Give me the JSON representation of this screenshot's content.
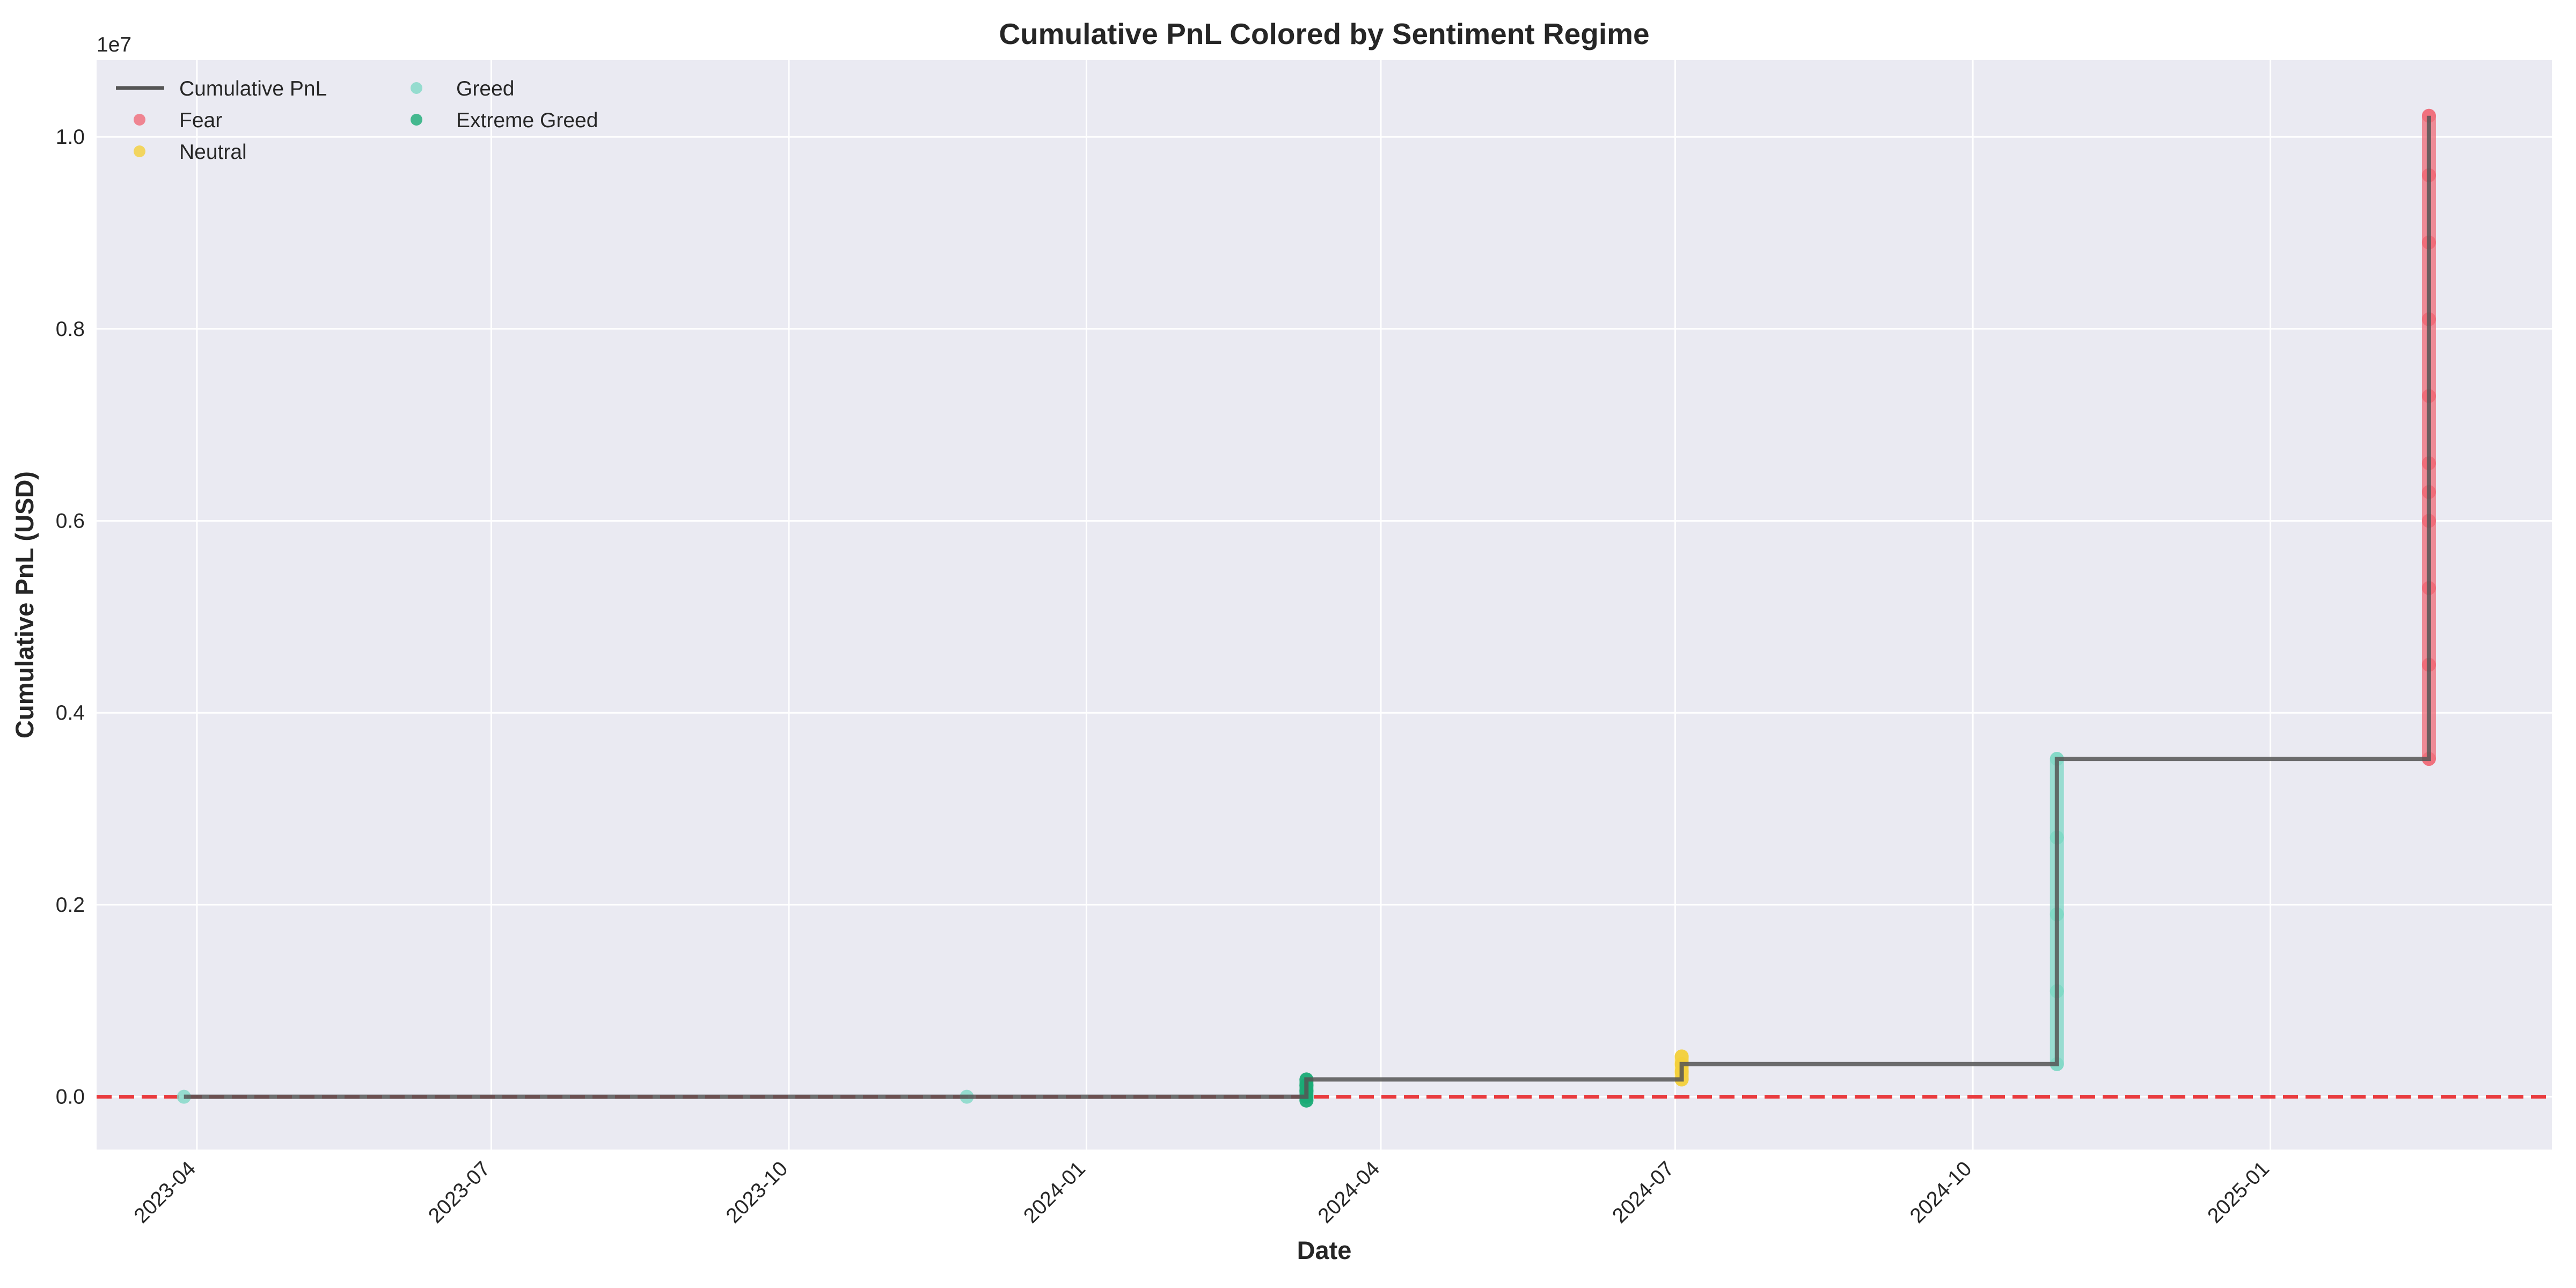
{
  "chart_data": {
    "type": "line",
    "title": "Cumulative PnL Colored by Sentiment Regime",
    "xlabel": "Date",
    "ylabel": "Cumulative PnL (USD)",
    "y_offset_label": "1e7",
    "xlim": [
      "2023-03-01",
      "2025-03-29"
    ],
    "ylim": [
      -550000,
      10800000
    ],
    "x_ticks": [
      "2023-04-01",
      "2023-07-01",
      "2023-10-01",
      "2024-01-01",
      "2024-04-01",
      "2024-07-01",
      "2024-10-01",
      "2025-01-01"
    ],
    "x_tick_labels": [
      "2023-04",
      "2023-07",
      "2023-10",
      "2024-01",
      "2024-04",
      "2024-07",
      "2024-10",
      "2025-01"
    ],
    "y_ticks": [
      0,
      2000000,
      4000000,
      6000000,
      8000000,
      10000000
    ],
    "y_tick_labels": [
      "0.0",
      "0.2",
      "0.4",
      "0.6",
      "0.8",
      "1.0"
    ],
    "grid": true,
    "legend_position": "top-left",
    "reference_line": {
      "y": 0,
      "style": "dashed",
      "color": "#e8262a"
    },
    "line": {
      "name": "Cumulative PnL",
      "color": "#555555",
      "points": [
        [
          "2023-03-28",
          0
        ],
        [
          "2024-03-09",
          0
        ],
        [
          "2024-03-09",
          180000
        ],
        [
          "2024-07-03",
          180000
        ],
        [
          "2024-07-03",
          340000
        ],
        [
          "2024-10-27",
          340000
        ],
        [
          "2024-10-27",
          3520000
        ],
        [
          "2025-02-19",
          3520000
        ],
        [
          "2025-02-19",
          10220000
        ]
      ]
    },
    "series": [
      {
        "name": "Fear",
        "color": "#f06a78",
        "points": [
          [
            "2025-02-19",
            3520000
          ],
          [
            "2025-02-19",
            4500000
          ],
          [
            "2025-02-19",
            5300000
          ],
          [
            "2025-02-19",
            6000000
          ],
          [
            "2025-02-19",
            6300000
          ],
          [
            "2025-02-19",
            6600000
          ],
          [
            "2025-02-19",
            7300000
          ],
          [
            "2025-02-19",
            8100000
          ],
          [
            "2025-02-19",
            8900000
          ],
          [
            "2025-02-19",
            9600000
          ],
          [
            "2025-02-19",
            10220000
          ]
        ]
      },
      {
        "name": "Neutral",
        "color": "#f4cf3a",
        "points": [
          [
            "2024-07-03",
            180000
          ],
          [
            "2024-07-03",
            260000
          ],
          [
            "2024-07-03",
            340000
          ],
          [
            "2024-07-03",
            420000
          ]
        ]
      },
      {
        "name": "Greed",
        "color": "#7fd8c6",
        "points": [
          [
            "2023-03-28",
            0
          ],
          [
            "2023-11-25",
            0
          ],
          [
            "2024-10-27",
            340000
          ],
          [
            "2024-10-27",
            1100000
          ],
          [
            "2024-10-27",
            1900000
          ],
          [
            "2024-10-27",
            2700000
          ],
          [
            "2024-10-27",
            3520000
          ]
        ]
      },
      {
        "name": "Extreme Greed",
        "color": "#1aab75",
        "points": [
          [
            "2024-03-09",
            -40000
          ],
          [
            "2024-03-09",
            0
          ],
          [
            "2024-03-09",
            60000
          ],
          [
            "2024-03-09",
            120000
          ],
          [
            "2024-03-09",
            180000
          ]
        ]
      }
    ]
  }
}
